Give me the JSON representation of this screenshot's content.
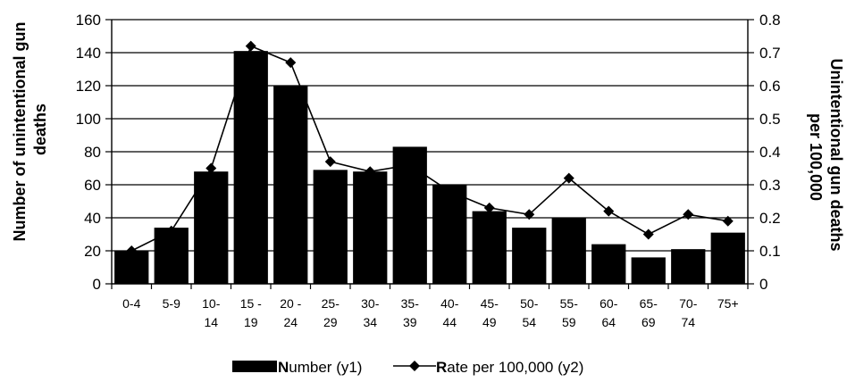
{
  "chart_data": {
    "type": "bar",
    "categories": [
      [
        "0-4",
        ""
      ],
      [
        "5-9",
        ""
      ],
      [
        "10-",
        "14"
      ],
      [
        "15 -",
        "19"
      ],
      [
        "20 -",
        "24"
      ],
      [
        "25-",
        "29"
      ],
      [
        "30-",
        "34"
      ],
      [
        "35-",
        "39"
      ],
      [
        "40-",
        "44"
      ],
      [
        "45-",
        "49"
      ],
      [
        "50-",
        "54"
      ],
      [
        "55-",
        "59"
      ],
      [
        "60-",
        "64"
      ],
      [
        "65-",
        "69"
      ],
      [
        "70-",
        "74"
      ],
      [
        "75+",
        ""
      ]
    ],
    "series": [
      {
        "name": "Number (y1)",
        "name_initial": "N",
        "name_rest": "umber (y1)",
        "type": "bar",
        "axis": "y1",
        "color": "#000000",
        "values": [
          20,
          34,
          68,
          141,
          120,
          69,
          68,
          83,
          60,
          44,
          34,
          40,
          24,
          16,
          21,
          31
        ]
      },
      {
        "name": "Rate per 100,000 (y2)",
        "name_initial": "R",
        "name_rest": "ate per 100,000 (y2)",
        "type": "line",
        "axis": "y2",
        "color": "#000000",
        "marker": "diamond",
        "values": [
          0.1,
          0.16,
          0.35,
          0.72,
          0.67,
          0.37,
          0.34,
          0.36,
          0.28,
          0.23,
          0.21,
          0.32,
          0.22,
          0.15,
          0.21,
          0.19
        ]
      }
    ],
    "ylabel_lines": [
      "Number of unintentional gun",
      "deaths"
    ],
    "y2label_lines": [
      "Unintentional gun deaths",
      "per 100,000"
    ],
    "ylim": [
      0,
      160
    ],
    "yticks": [
      0,
      20,
      40,
      60,
      80,
      100,
      120,
      140,
      160
    ],
    "y2lim": [
      0,
      0.8
    ],
    "y2ticks": [
      "0",
      "0.1",
      "0.2",
      "0.3",
      "0.4",
      "0.5",
      "0.6",
      "0.7",
      "0.8"
    ],
    "grid": true,
    "legend_position": "bottom"
  }
}
